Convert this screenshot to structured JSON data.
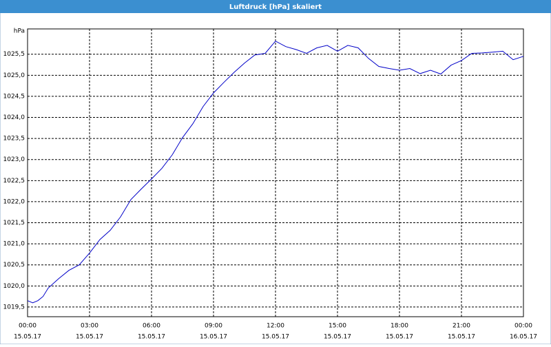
{
  "chart_data": {
    "type": "line",
    "title": "Luftdruck [hPa] skaliert",
    "ylabel": "hPa",
    "x": [
      0,
      0.25,
      0.5,
      0.75,
      1,
      1.5,
      2,
      2.5,
      3,
      3.5,
      4,
      4.5,
      5,
      5.5,
      6,
      6.5,
      7,
      7.5,
      8,
      8.5,
      9,
      9.5,
      10,
      10.5,
      11,
      11.5,
      12,
      12.5,
      13,
      13.5,
      14,
      14.5,
      15,
      15.5,
      16,
      16.5,
      17,
      17.5,
      18,
      18.5,
      19,
      19.5,
      20,
      20.5,
      21,
      21.5,
      22,
      22.5,
      23,
      23.5,
      24
    ],
    "series": [
      {
        "name": "Luftdruck",
        "color": "#0000c8",
        "values": [
          1019.65,
          1019.6,
          1019.65,
          1019.75,
          1019.95,
          1020.17,
          1020.37,
          1020.5,
          1020.78,
          1021.1,
          1021.32,
          1021.64,
          1022.05,
          1022.3,
          1022.54,
          1022.79,
          1023.11,
          1023.52,
          1023.85,
          1024.26,
          1024.58,
          1024.83,
          1025.07,
          1025.29,
          1025.48,
          1025.52,
          1025.81,
          1025.68,
          1025.61,
          1025.52,
          1025.65,
          1025.71,
          1025.57,
          1025.71,
          1025.65,
          1025.4,
          1025.21,
          1025.16,
          1025.12,
          1025.16,
          1025.04,
          1025.12,
          1025.03,
          1025.24,
          1025.35,
          1025.52,
          1025.53,
          1025.55,
          1025.57,
          1025.37,
          1025.45
        ]
      }
    ],
    "xlim": [
      0,
      24
    ],
    "xticks": [
      {
        "value": 0,
        "label": "00:00"
      },
      {
        "value": 3,
        "label": "03:00"
      },
      {
        "value": 6,
        "label": "06:00"
      },
      {
        "value": 9,
        "label": "09:00"
      },
      {
        "value": 12,
        "label": "12:00"
      },
      {
        "value": 15,
        "label": "15:00"
      },
      {
        "value": 18,
        "label": "18:00"
      },
      {
        "value": 21,
        "label": "21:00"
      },
      {
        "value": 24,
        "label": "00:00"
      }
    ],
    "xtick_dates": [
      "15.05.17",
      "15.05.17",
      "15.05.17",
      "15.05.17",
      "15.05.17",
      "15.05.17",
      "15.05.17",
      "15.05.17",
      "16.05.17"
    ],
    "ylim": [
      1019.27,
      1026.1
    ],
    "yticks": [
      {
        "value": 1019.5,
        "label": "1019,5"
      },
      {
        "value": 1020,
        "label": "1020,0"
      },
      {
        "value": 1020.5,
        "label": "1020,5"
      },
      {
        "value": 1021,
        "label": "1021,0"
      },
      {
        "value": 1021.5,
        "label": "1021,5"
      },
      {
        "value": 1022,
        "label": "1022,0"
      },
      {
        "value": 1022.5,
        "label": "1022,5"
      },
      {
        "value": 1023,
        "label": "1023,0"
      },
      {
        "value": 1023.5,
        "label": "1023,5"
      },
      {
        "value": 1024,
        "label": "1024,0"
      },
      {
        "value": 1024.5,
        "label": "1024,5"
      },
      {
        "value": 1025,
        "label": "1025,0"
      },
      {
        "value": 1025.5,
        "label": "1025,5"
      }
    ],
    "grid": true
  }
}
